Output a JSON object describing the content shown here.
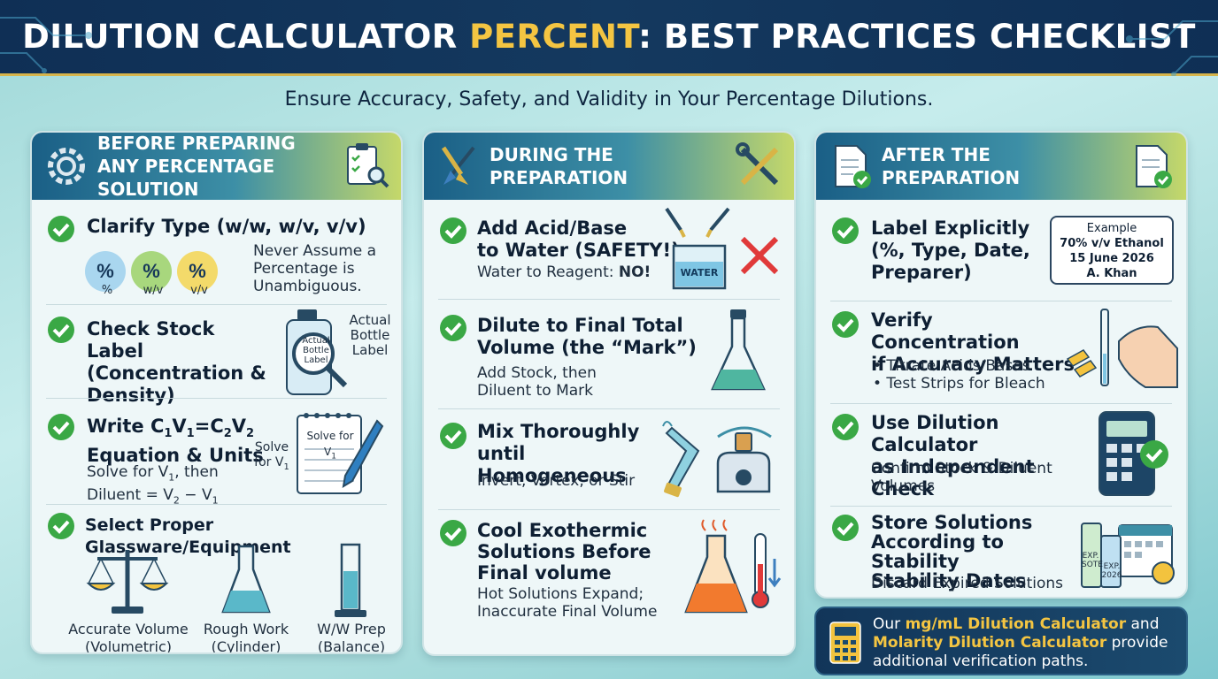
{
  "header": {
    "title_part1": "DILUTION CALCULATOR ",
    "title_highlight": "PERCENT",
    "title_part2": ": BEST PRACTICES CHECKLIST"
  },
  "subtitle": "Ensure Accuracy, Safety, and Validity in Your Percentage Dilutions.",
  "colors": {
    "navy": "#0f2f55",
    "gold": "#f4c542",
    "check_green": "#3aa845",
    "teal": "#3d8fa6"
  },
  "panel_before": {
    "title": "BEFORE PREPARING ANY PERCENTAGE SOLUTION",
    "items": [
      {
        "title": "Clarify Type (w/w, w/v, v/v)",
        "desc": "Never Assume a Percentage is Unambiguous.",
        "bubbles": [
          "%",
          "%",
          "%"
        ],
        "bubble_labels": [
          "%",
          "w/v",
          "v/v"
        ]
      },
      {
        "title": "Check Stock Label (Concentration & Density)",
        "bottle_label": "Actual Bottle Label",
        "side_label": "Actual Bottle Label"
      },
      {
        "title_a": "Write C",
        "title_b": "V",
        "title_c": "=C",
        "title_d": "V",
        "sub1": "1",
        "sub2": "1",
        "sub3": "2",
        "sub4": "2",
        "title_line2": "Equation & Units",
        "desc_line1_a": "Solve for V",
        "desc_line1_sub": "1",
        "desc_line1_b": ", then",
        "desc_line2_a": "Diluent = V",
        "desc_line2_sub1": "2",
        "desc_line2_b": " − V",
        "desc_line2_sub2": "1",
        "note_a": "Solve",
        "note_b": "for V",
        "note_sub": "1",
        "pad_a": "Solve for V",
        "pad_sub": "1"
      },
      {
        "title": "Select Proper Glassware/Equipment",
        "equipment": [
          {
            "name": "Accurate Volume",
            "detail": "(Volumetric)"
          },
          {
            "name": "Rough Work",
            "detail": "(Cylinder)"
          },
          {
            "name": "W/W Prep",
            "detail": "(Balance)"
          }
        ]
      }
    ]
  },
  "panel_during": {
    "title": "DURING THE PREPARATION",
    "items": [
      {
        "title_l1": "Add Acid/Base",
        "title_l2": "to Water (SAFETY!)",
        "desc_a": "Water to Reagent: ",
        "desc_b": "NO!",
        "beaker_label": "WATER"
      },
      {
        "title_l1": "Dilute to Final Total",
        "title_l2": "Volume (the “Mark”)",
        "desc_l1": "Add Stock, then",
        "desc_l2": "Diluent to Mark"
      },
      {
        "title_l1": "Mix Thoroughly",
        "title_l2": "until Homogeneous",
        "desc": "Invert, Vortex, or Stir"
      },
      {
        "title_l1": "Cool Exothermic",
        "title_l2": "Solutions Before",
        "title_l3": "Final volume",
        "desc_l1": "Hot Solutions Expand;",
        "desc_l2": "Inaccurate Final Volume"
      }
    ]
  },
  "panel_after": {
    "title": "AFTER THE PREPARATION",
    "items": [
      {
        "title_l1": "Label Explicitly",
        "title_l2": "(%, Type, Date,",
        "title_l3": "Preparer)",
        "tag": [
          "Example",
          "70% v/v Ethanol",
          "15 June 2026",
          "A. Khan"
        ]
      },
      {
        "title_l1": "Verify Concentration",
        "title_l2": "if Accuracy Matters",
        "bullets": [
          "• Titrate Acids/Bases",
          "• Test Strips for Bleach"
        ]
      },
      {
        "title_l1": "Use Dilution Calculator",
        "title_l2": "as Independent Check",
        "desc_l1": "Confirm Stock & Diluent",
        "desc_l2": "Volumes"
      },
      {
        "title_l1": "Store Solutions",
        "title_l2": "According to Stability",
        "title_l3": "Stability Dates",
        "desc": "Discard Expired Solutions",
        "vial1": [
          "EXP.",
          "SOTE"
        ],
        "vial2": [
          "EXP.",
          "2026"
        ]
      }
    ]
  },
  "footer": {
    "text_a": "Our ",
    "link1": "mg/mL Dilution Calculator",
    "text_b": " and ",
    "link2": "Molarity Dilution Calculator",
    "text_c": " provide additional verification paths."
  }
}
